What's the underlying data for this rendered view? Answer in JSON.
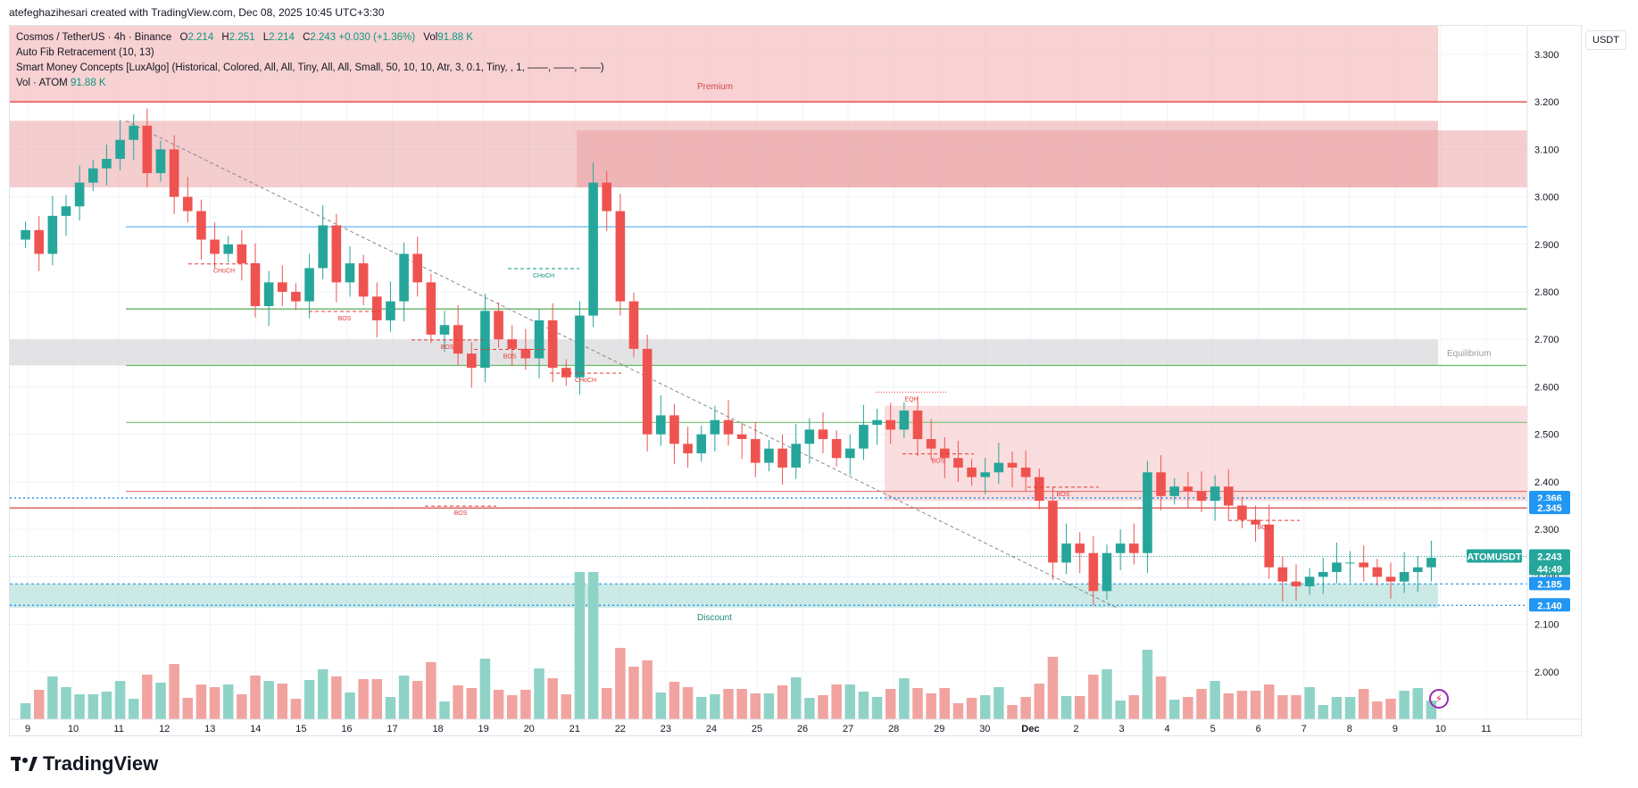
{
  "caption": "atefeghazihesari created with TradingView.com, Dec 08, 2025 10:45 UTC+3:30",
  "legend": {
    "symbol": "Cosmos / TetherUS · 4h · Binance",
    "o_label": "O",
    "o": "2.214",
    "h_label": "H",
    "h": "2.251",
    "l_label": "L",
    "l": "2.214",
    "c_label": "C",
    "c": "2.243",
    "change": "+0.030 (+1.36%)",
    "vol_label": "Vol",
    "vol": "91.88 K",
    "fib": "Auto Fib Retracement (10, 13)",
    "smc": "Smart Money Concepts [LuxAlgo] (Historical, Colored, All, All, Tiny, All, All, Small, 50, 10, 10, Atr, 3, 0.1, Tiny, , 1, ——, ——, ——)",
    "vol_line_label": "Vol · ATOM",
    "vol_line_value": "91.88 K"
  },
  "currency": "USDT",
  "brand": "TradingView",
  "colors": {
    "up": "#26a69a",
    "down": "#ef5350",
    "volUp": "#8fd3c7",
    "volDown": "#f1a3a0",
    "premium": "#f5c2c3",
    "discount": "#b9e2dc",
    "equilibrium": "#d9dadc",
    "accent": "#2196f3"
  },
  "chart_data": {
    "type": "candlestick",
    "title": "Cosmos / TetherUS · 4h · Binance",
    "ylabel": "USDT",
    "ylim": [
      1.9,
      3.36
    ],
    "y_ticks": [
      "3.300",
      "3.200",
      "3.100",
      "3.000",
      "2.900",
      "2.800",
      "2.700",
      "2.600",
      "2.500",
      "2.400",
      "2.300",
      "2.200",
      "2.100",
      "2.000"
    ],
    "x_ticks": [
      "9",
      "10",
      "11",
      "12",
      "13",
      "14",
      "15",
      "16",
      "17",
      "18",
      "19",
      "20",
      "21",
      "22",
      "23",
      "24",
      "25",
      "26",
      "27",
      "28",
      "29",
      "30",
      "Dec",
      "2",
      "3",
      "4",
      "5",
      "6",
      "7",
      "8",
      "9",
      "10",
      "11"
    ],
    "close": [
      2.93,
      2.88,
      2.96,
      2.98,
      3.03,
      3.06,
      3.08,
      3.12,
      3.15,
      3.05,
      3.1,
      3.0,
      2.97,
      2.91,
      2.88,
      2.9,
      2.86,
      2.77,
      2.82,
      2.8,
      2.78,
      2.85,
      2.94,
      2.82,
      2.86,
      2.79,
      2.74,
      2.78,
      2.88,
      2.82,
      2.71,
      2.73,
      2.67,
      2.64,
      2.76,
      2.7,
      2.68,
      2.66,
      2.74,
      2.64,
      2.62,
      2.75,
      3.03,
      2.97,
      2.78,
      2.68,
      2.5,
      2.54,
      2.48,
      2.46,
      2.5,
      2.53,
      2.5,
      2.49,
      2.44,
      2.47,
      2.43,
      2.48,
      2.51,
      2.49,
      2.45,
      2.47,
      2.52,
      2.53,
      2.51,
      2.55,
      2.49,
      2.47,
      2.45,
      2.43,
      2.41,
      2.42,
      2.44,
      2.43,
      2.41,
      2.36,
      2.23,
      2.27,
      2.25,
      2.17,
      2.25,
      2.27,
      2.25,
      2.42,
      2.37,
      2.39,
      2.38,
      2.36,
      2.39,
      2.35,
      2.32,
      2.31,
      2.22,
      2.19,
      2.18,
      2.2,
      2.21,
      2.23,
      2.23,
      2.22,
      2.2,
      2.19,
      2.21,
      2.22,
      2.24
    ],
    "series": [
      {
        "name": "Fib 3.200",
        "values": [
          3.2
        ]
      },
      {
        "name": "Fib 2.937",
        "values": [
          2.937
        ]
      },
      {
        "name": "Fib 2.764",
        "values": [
          2.764
        ]
      },
      {
        "name": "Fib 2.645",
        "values": [
          2.645
        ]
      },
      {
        "name": "Fib 2.525",
        "values": [
          2.525
        ]
      },
      {
        "name": "Fib 2.380",
        "values": [
          2.38
        ]
      },
      {
        "name": "Resistance 2.345",
        "values": [
          2.345
        ]
      },
      {
        "name": "Support 2.185",
        "values": [
          2.185
        ]
      }
    ],
    "price_labels": [
      {
        "value": "2.366",
        "color": "#2196f3"
      },
      {
        "value": "2.345",
        "color": "#2196f3"
      },
      {
        "value": "ATOMUSDT",
        "color": "#26a69a"
      },
      {
        "value": "2.243",
        "color": "#26a69a"
      },
      {
        "value": "44:49",
        "color": "#26a69a"
      },
      {
        "value": "2.185",
        "color": "#2196f3"
      },
      {
        "value": "2.140",
        "color": "#2196f3"
      }
    ],
    "zones": [
      {
        "name": "Premium",
        "from": 3.2,
        "to": 3.36
      },
      {
        "name": "Equilibrium",
        "from": 2.645,
        "to": 2.7
      },
      {
        "name": "Discount",
        "from": 2.135,
        "to": 2.185
      }
    ],
    "annotations": [
      "CHoCH",
      "BOS",
      "BOS",
      "BOS",
      "CHoCH",
      "CHoCH",
      "EQH",
      "BOS",
      "BOS",
      "BOS",
      "BOS"
    ]
  }
}
